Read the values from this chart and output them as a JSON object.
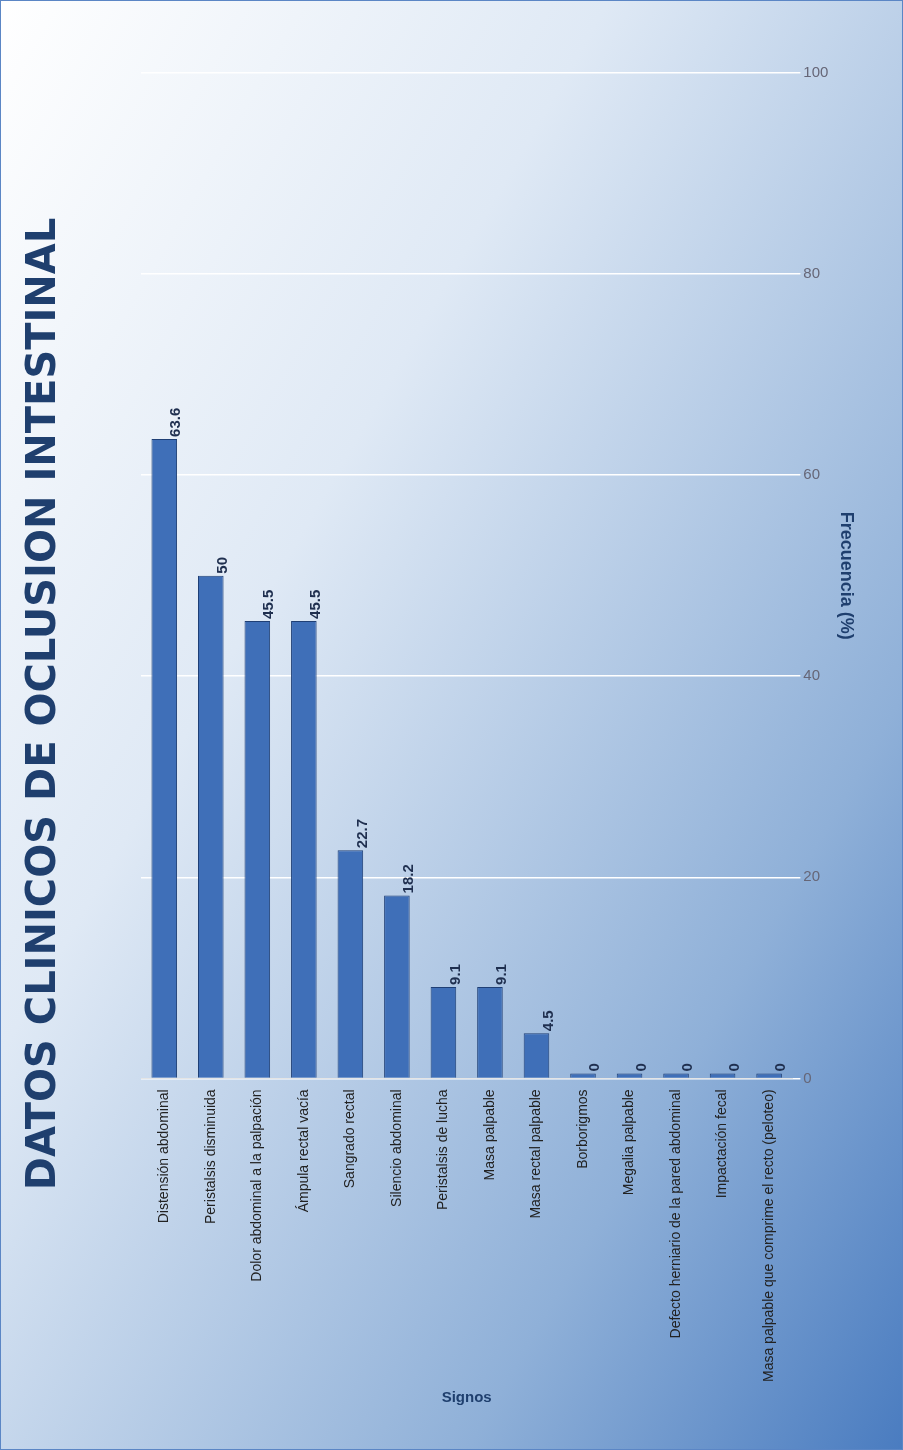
{
  "chart_data": {
    "type": "bar",
    "title": "DATOS CLINICOS DE OCLUSION INTESTINAL",
    "xlabel": "Signos",
    "ylabel": "Frecuencia (%)",
    "categories": [
      "Distensión abdominal",
      "Peristalsis disminuida",
      "Dolor abdominal a la palpación",
      "Ámpula rectal vacía",
      "Sangrado rectal",
      "Silencio abdominal",
      "Peristalsis de lucha",
      "Masa palpable",
      "Masa rectal palpable",
      "Borborigmos",
      "Megalia palpable",
      "Defecto herniario de la pared abdominal",
      "Impactación fecal",
      "Masa palpable que comprime el recto (peloteo)"
    ],
    "values": [
      63.6,
      50,
      45.5,
      45.5,
      22.7,
      18.2,
      9.1,
      9.1,
      4.5,
      0,
      0,
      0,
      0,
      0
    ],
    "color": "#3f6fb8",
    "ylim": [
      0,
      100
    ],
    "yticks": [
      0,
      20,
      40,
      60,
      80,
      100
    ],
    "grid": "y",
    "data_labels": true,
    "legend": false
  }
}
